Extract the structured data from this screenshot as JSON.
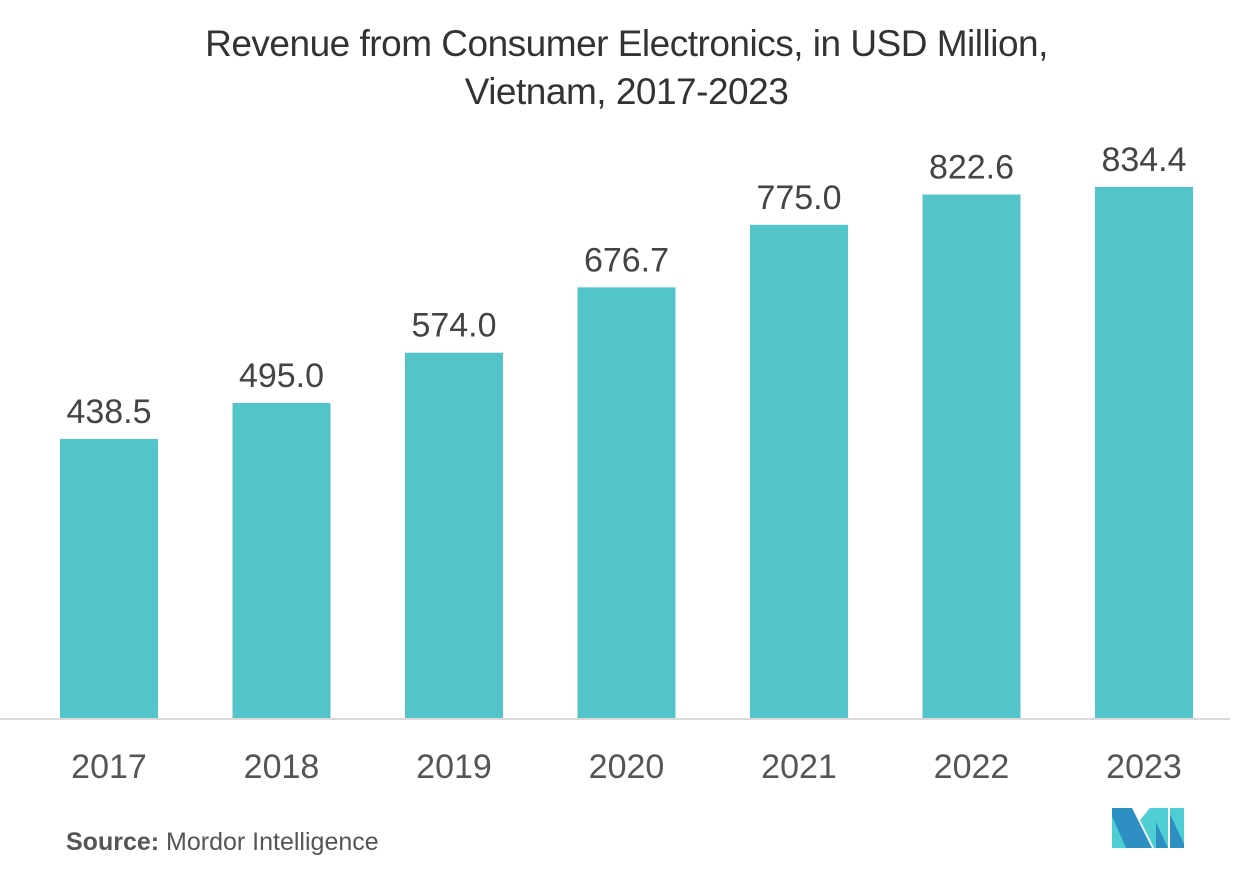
{
  "chart_data": {
    "type": "bar",
    "title": "Revenue from Consumer Electronics, in USD Million, Vietnam, 2017-2023",
    "title_lines": [
      "Revenue from Consumer Electronics, in USD Million,",
      "Vietnam, 2017-2023"
    ],
    "categories": [
      "2017",
      "2018",
      "2019",
      "2020",
      "2021",
      "2022",
      "2023"
    ],
    "values": [
      438.5,
      495.0,
      574.0,
      676.7,
      775.0,
      822.6,
      834.4
    ],
    "labels": [
      "438.5",
      "495.0",
      "574.0",
      "676.7",
      "775.0",
      "822.6",
      "834.4"
    ],
    "xlabel": "",
    "ylabel": "",
    "ylim": [
      0,
      834.4
    ],
    "grid": false,
    "legend": "none",
    "bar_color": "#52c4ca"
  },
  "source": {
    "label": "Source:",
    "text": "Mordor Intelligence"
  },
  "colors": {
    "text": "#444444",
    "axis": "#d9d9d9",
    "logo_dark": "#2e8fc3",
    "logo_light": "#4ecdd2"
  }
}
